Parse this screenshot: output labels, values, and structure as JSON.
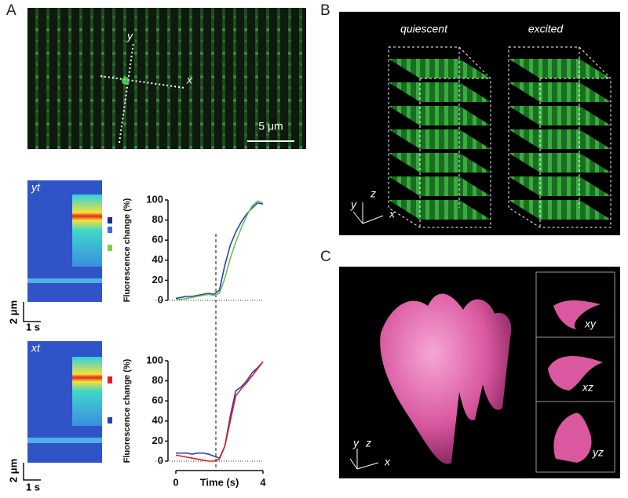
{
  "figure": {
    "panels": {
      "a": "A",
      "b": "B",
      "c": "C"
    },
    "image_a": {
      "axis_y": "y",
      "axis_x": "x",
      "scale_bar": "5 μm"
    },
    "kymographs": [
      {
        "label": "yt",
        "scale_y": "2 μm",
        "scale_x": "1 s"
      },
      {
        "label": "xt",
        "scale_y": "2 μm",
        "scale_x": "1 s"
      }
    ],
    "panel_b": {
      "states": [
        "quiescent",
        "excited"
      ],
      "axes": [
        "y",
        "z",
        "x"
      ]
    },
    "panel_c": {
      "axes": [
        "y",
        "z",
        "x"
      ],
      "views": [
        "xy",
        "xz",
        "yz"
      ]
    }
  },
  "chart_data": [
    {
      "type": "line",
      "ylabel": "Fluorescence change (%)",
      "xlim": [
        0,
        4
      ],
      "ylim": [
        0,
        100
      ],
      "yticks": [
        0,
        20,
        40,
        60,
        80,
        100
      ],
      "x": [
        0,
        0.25,
        0.5,
        0.75,
        1,
        1.25,
        1.5,
        1.75,
        2,
        2.25,
        2.5,
        2.75,
        3,
        3.25,
        3.5,
        3.75,
        4
      ],
      "series": [
        {
          "color": "#2b3fb8",
          "values": [
            2,
            3,
            4,
            4,
            5,
            6,
            7,
            6,
            10,
            35,
            55,
            68,
            78,
            86,
            92,
            97,
            96
          ]
        },
        {
          "color": "#6cc24a",
          "values": [
            1,
            1,
            2,
            3,
            4,
            5,
            6,
            5,
            7,
            22,
            42,
            58,
            72,
            84,
            94,
            99,
            97
          ]
        }
      ]
    },
    {
      "type": "line",
      "ylabel": "Fluorescence change (%)",
      "xlabel": "Time (s)",
      "xlim": [
        0,
        4
      ],
      "xticks": [
        0,
        4
      ],
      "ylim": [
        0,
        100
      ],
      "yticks": [
        0,
        20,
        40,
        60,
        80,
        100
      ],
      "x": [
        0,
        0.25,
        0.5,
        0.75,
        1,
        1.25,
        1.5,
        1.75,
        2,
        2.25,
        2.5,
        2.75,
        3,
        3.25,
        3.5,
        3.75,
        4
      ],
      "series": [
        {
          "color": "#2b3fb8",
          "values": [
            8,
            8,
            8,
            7,
            8,
            8,
            7,
            5,
            3,
            15,
            45,
            70,
            74,
            80,
            88,
            93,
            99
          ]
        },
        {
          "color": "#e02020",
          "values": [
            6,
            5,
            4,
            3,
            2,
            1,
            0,
            0,
            2,
            15,
            40,
            65,
            72,
            78,
            85,
            92,
            99
          ]
        }
      ]
    }
  ]
}
